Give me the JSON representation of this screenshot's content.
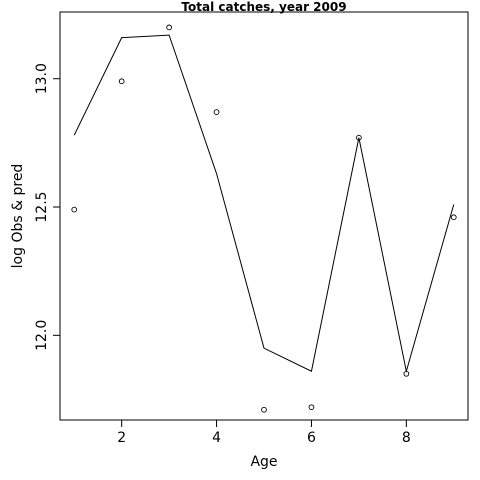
{
  "chart_data": {
    "type": "line",
    "title": "Total catches, year 2009",
    "xlabel": "Age",
    "ylabel": "log Obs & pred",
    "xlim": [
      0.7,
      9.3
    ],
    "ylim": [
      11.67,
      13.26
    ],
    "x_ticks": [
      2,
      4,
      6,
      8
    ],
    "y_ticks": [
      12.0,
      12.5,
      13.0
    ],
    "x_tick_labels": [
      "2",
      "4",
      "6",
      "8"
    ],
    "y_tick_labels": [
      "12.0",
      "12.5",
      "13.0"
    ],
    "grid": false,
    "series": [
      {
        "kind": "points",
        "x": [
          1,
          2,
          3,
          4,
          5,
          6,
          7,
          8,
          9
        ],
        "y": [
          12.49,
          12.99,
          13.2,
          12.87,
          11.71,
          11.72,
          12.77,
          11.85,
          12.46
        ]
      },
      {
        "kind": "line",
        "x": [
          1,
          2,
          3,
          4,
          5,
          6,
          7,
          8,
          9
        ],
        "y": [
          12.78,
          13.16,
          13.17,
          12.63,
          11.95,
          11.86,
          12.77,
          11.86,
          12.51
        ]
      }
    ]
  }
}
